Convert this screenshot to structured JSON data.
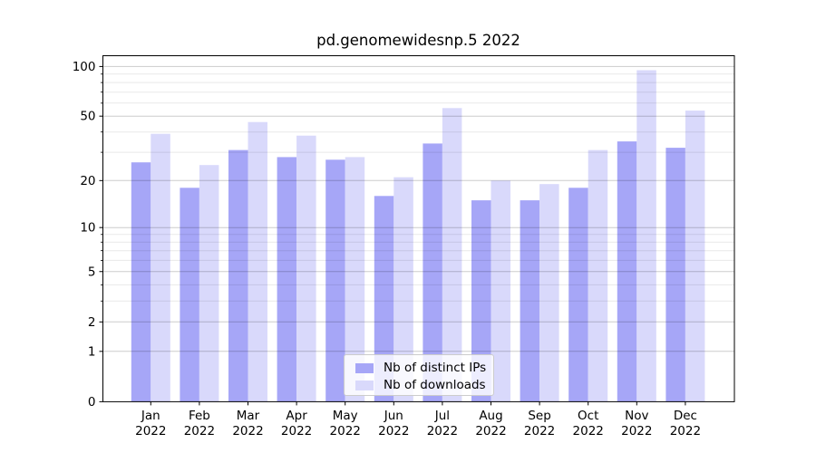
{
  "chart_data": {
    "type": "bar",
    "title": "pd.genomewidesnp.5 2022",
    "categories": [
      "Jan",
      "Feb",
      "Mar",
      "Apr",
      "May",
      "Jun",
      "Jul",
      "Aug",
      "Sep",
      "Oct",
      "Nov",
      "Dec"
    ],
    "year": "2022",
    "series": [
      {
        "name": "Nb of distinct IPs",
        "color": "#a6a6f7",
        "values": [
          26,
          18,
          31,
          28,
          27,
          16,
          34,
          15,
          15,
          18,
          35,
          32
        ]
      },
      {
        "name": "Nb of downloads",
        "color": "#d9d9fb",
        "values": [
          39,
          25,
          46,
          38,
          28,
          21,
          56,
          20,
          19,
          31,
          95,
          54
        ]
      }
    ],
    "yscale": "log1p",
    "yticks": [
      0,
      1,
      2,
      5,
      10,
      20,
      50,
      100
    ],
    "yticks_minor": [
      3,
      4,
      6,
      7,
      8,
      9,
      30,
      40,
      60,
      70,
      80,
      90
    ],
    "ylim": [
      0,
      116
    ],
    "grid": true,
    "legend_position": "lower center"
  }
}
